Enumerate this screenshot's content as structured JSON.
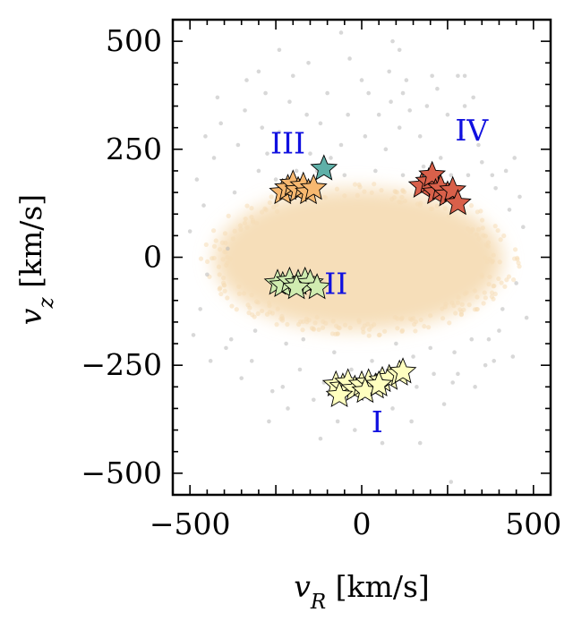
{
  "chart_data": {
    "type": "scatter",
    "xlabel": {
      "var": "v",
      "sub": "R",
      "unit": " [km/s]"
    },
    "ylabel": {
      "var": "v",
      "sub": "z",
      "unit": " [km/s]"
    },
    "xlim": [
      -550,
      550
    ],
    "ylim": [
      -550,
      550
    ],
    "xticks": [
      {
        "value": -500,
        "label": "−500"
      },
      {
        "value": 0,
        "label": "0"
      },
      {
        "value": 500,
        "label": "500"
      }
    ],
    "yticks": [
      {
        "value": 500,
        "label": "500"
      },
      {
        "value": 250,
        "label": "250"
      },
      {
        "value": 0,
        "label": "0"
      },
      {
        "value": -250,
        "label": "−250"
      },
      {
        "value": -500,
        "label": "−500"
      }
    ],
    "grid": false,
    "colors": {
      "background_cloud": "#f6ddb7",
      "halo_points": "#b8b8b8",
      "label_text": "#1010e0"
    },
    "background_cloud": {
      "description_free": true,
      "x_range": [
        -420,
        400
      ],
      "y_range": [
        -160,
        150
      ]
    },
    "groups": [
      {
        "label": "I",
        "label_pos": [
          45,
          -405
        ],
        "color": "#ffffbf",
        "points": [
          [
            -75,
            -295
          ],
          [
            -55,
            -300
          ],
          [
            -40,
            -290
          ],
          [
            -20,
            -305
          ],
          [
            0,
            -295
          ],
          [
            20,
            -290
          ],
          [
            40,
            -300
          ],
          [
            60,
            -285
          ],
          [
            80,
            -280
          ],
          [
            110,
            -270
          ],
          [
            120,
            -265
          ],
          [
            -65,
            -320
          ],
          [
            10,
            -310
          ],
          [
            50,
            -295
          ]
        ]
      },
      {
        "label": "II",
        "label_pos": [
          -75,
          -85
        ],
        "color": "#d0ecb0",
        "points": [
          [
            -245,
            -60
          ],
          [
            -230,
            -65
          ],
          [
            -210,
            -55
          ],
          [
            -185,
            -60
          ],
          [
            -165,
            -55
          ],
          [
            -150,
            -60
          ],
          [
            -130,
            -70
          ],
          [
            -190,
            -70
          ]
        ]
      },
      {
        "label": "III",
        "label_pos": [
          -215,
          240
        ],
        "color": "#f7b870",
        "points": [
          [
            -230,
            150
          ],
          [
            -215,
            160
          ],
          [
            -200,
            170
          ],
          [
            -185,
            155
          ],
          [
            -170,
            165
          ],
          [
            -155,
            150
          ],
          [
            -140,
            160
          ]
        ]
      },
      {
        "label": "",
        "color": "#5fb0a8",
        "points": [
          [
            -110,
            205
          ]
        ]
      },
      {
        "label": "IV",
        "label_pos": [
          320,
          270
        ],
        "color": "#d9604a",
        "points": [
          [
            175,
            165
          ],
          [
            195,
            175
          ],
          [
            205,
            190
          ],
          [
            215,
            150
          ],
          [
            230,
            160
          ],
          [
            250,
            145
          ],
          [
            265,
            155
          ],
          [
            280,
            125
          ]
        ]
      }
    ],
    "halo_points": [
      [
        -480,
        180
      ],
      [
        -460,
        120
      ],
      [
        -450,
        -40
      ],
      [
        -470,
        -120
      ],
      [
        -430,
        230
      ],
      [
        -410,
        310
      ],
      [
        -390,
        20
      ],
      [
        -380,
        -190
      ],
      [
        -360,
        260
      ],
      [
        -340,
        340
      ],
      [
        -320,
        -240
      ],
      [
        -300,
        200
      ],
      [
        -280,
        380
      ],
      [
        -260,
        -310
      ],
      [
        -240,
        290
      ],
      [
        -220,
        -200
      ],
      [
        -200,
        420
      ],
      [
        -180,
        -260
      ],
      [
        -160,
        330
      ],
      [
        -150,
        240
      ],
      [
        -140,
        -330
      ],
      [
        -120,
        310
      ],
      [
        -100,
        380
      ],
      [
        -80,
        -220
      ],
      [
        -60,
        260
      ],
      [
        -40,
        330
      ],
      [
        -20,
        -400
      ],
      [
        0,
        410
      ],
      [
        10,
        280
      ],
      [
        30,
        -240
      ],
      [
        50,
        330
      ],
      [
        70,
        250
      ],
      [
        90,
        -350
      ],
      [
        110,
        300
      ],
      [
        130,
        410
      ],
      [
        150,
        -230
      ],
      [
        170,
        280
      ],
      [
        190,
        350
      ],
      [
        210,
        -270
      ],
      [
        230,
        230
      ],
      [
        250,
        330
      ],
      [
        270,
        -220
      ],
      [
        290,
        280
      ],
      [
        310,
        190
      ],
      [
        330,
        -300
      ],
      [
        350,
        220
      ],
      [
        370,
        -190
      ],
      [
        390,
        160
      ],
      [
        410,
        -120
      ],
      [
        430,
        110
      ],
      [
        450,
        -60
      ],
      [
        470,
        70
      ],
      [
        -500,
        60
      ],
      [
        -490,
        -180
      ],
      [
        -440,
        -240
      ],
      [
        -420,
        370
      ],
      [
        -370,
        150
      ],
      [
        -350,
        -280
      ],
      [
        -310,
        -170
      ],
      [
        -290,
        300
      ],
      [
        -270,
        -380
      ],
      [
        -250,
        180
      ],
      [
        -230,
        -300
      ],
      [
        -210,
        360
      ],
      [
        -190,
        200
      ],
      [
        -170,
        -190
      ],
      [
        -130,
        200
      ],
      [
        -110,
        -290
      ],
      [
        -90,
        230
      ],
      [
        -70,
        -380
      ],
      [
        -50,
        190
      ],
      [
        -30,
        -260
      ],
      [
        20,
        380
      ],
      [
        40,
        200
      ],
      [
        60,
        -260
      ],
      [
        80,
        430
      ],
      [
        100,
        -200
      ],
      [
        120,
        190
      ],
      [
        140,
        340
      ],
      [
        160,
        -300
      ],
      [
        180,
        210
      ],
      [
        200,
        -210
      ],
      [
        220,
        390
      ],
      [
        240,
        -340
      ],
      [
        260,
        190
      ],
      [
        280,
        -270
      ],
      [
        300,
        350
      ],
      [
        320,
        -190
      ],
      [
        340,
        260
      ],
      [
        360,
        -250
      ],
      [
        380,
        190
      ],
      [
        400,
        -170
      ],
      [
        420,
        200
      ],
      [
        440,
        -230
      ],
      [
        460,
        140
      ],
      [
        480,
        -140
      ],
      [
        -455,
        280
      ],
      [
        -395,
        -210
      ],
      [
        -335,
        410
      ],
      [
        -275,
        240
      ],
      [
        -215,
        -350
      ],
      [
        -155,
        450
      ],
      [
        -95,
        -310
      ],
      [
        -35,
        460
      ],
      [
        25,
        -330
      ],
      [
        85,
        360
      ],
      [
        145,
        -380
      ],
      [
        205,
        420
      ],
      [
        265,
        -290
      ],
      [
        325,
        370
      ],
      [
        385,
        -240
      ],
      [
        445,
        230
      ],
      [
        -120,
        -420
      ],
      [
        60,
        -430
      ],
      [
        -300,
        430
      ],
      [
        280,
        420
      ],
      [
        -240,
        480
      ],
      [
        110,
        480
      ],
      [
        -60,
        520
      ],
      [
        170,
        -430
      ],
      [
        90,
        500
      ],
      [
        260,
        -520
      ],
      [
        300,
        420
      ],
      [
        120,
        380
      ]
    ]
  }
}
